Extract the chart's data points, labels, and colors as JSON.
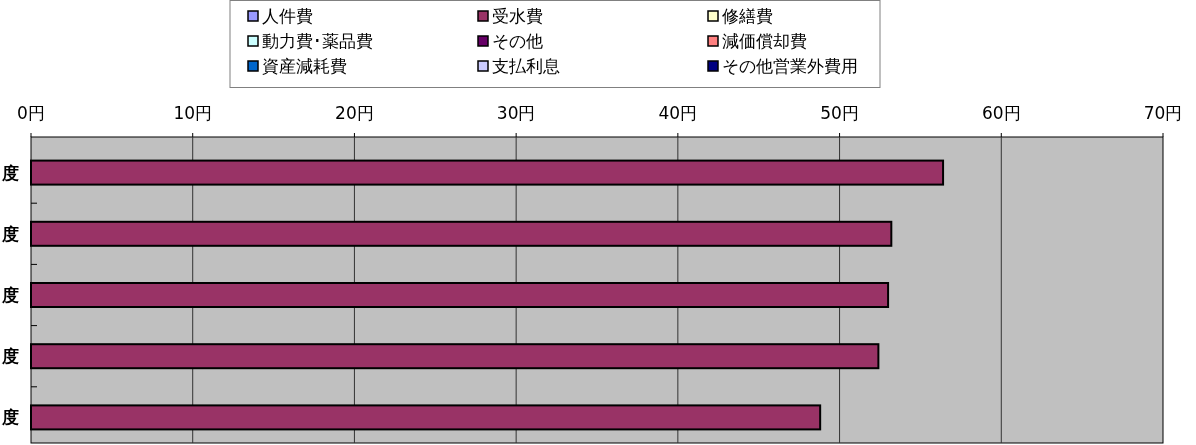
{
  "chart_data": {
    "type": "bar",
    "orientation": "horizontal",
    "stacked": true,
    "categories": [
      "度",
      "度",
      "度",
      "度",
      "度"
    ],
    "series": [
      {
        "name": "人件費",
        "color": "#9999ff",
        "values": [
          0,
          0,
          0,
          0,
          0
        ]
      },
      {
        "name": "受水費",
        "color": "#993366",
        "values": [
          56.4,
          53.2,
          53.0,
          52.4,
          48.8
        ]
      },
      {
        "name": "修繕費",
        "color": "#ffffcc",
        "values": [
          0,
          0,
          0,
          0,
          0
        ]
      },
      {
        "name": "動力費･薬品費",
        "color": "#ccffff",
        "values": [
          0,
          0,
          0,
          0,
          0
        ]
      },
      {
        "name": "その他",
        "color": "#660066",
        "values": [
          0,
          0,
          0,
          0,
          0
        ]
      },
      {
        "name": "減価償却費",
        "color": "#ff8080",
        "values": [
          0,
          0,
          0,
          0,
          0
        ]
      },
      {
        "name": "資産減耗費",
        "color": "#0066cc",
        "values": [
          0,
          0,
          0,
          0,
          0
        ]
      },
      {
        "name": "支払利息",
        "color": "#ccccff",
        "values": [
          0,
          0,
          0,
          0,
          0
        ]
      },
      {
        "name": "その他営業外費用",
        "color": "#000080",
        "values": [
          0,
          0,
          0,
          0,
          0
        ]
      }
    ],
    "xlim": [
      0,
      70
    ],
    "xticks": [
      {
        "value": 0,
        "label": "0円"
      },
      {
        "value": 10,
        "label": "10円"
      },
      {
        "value": 20,
        "label": "20円"
      },
      {
        "value": 30,
        "label": "30円"
      },
      {
        "value": 40,
        "label": "40円"
      },
      {
        "value": 50,
        "label": "50円"
      },
      {
        "value": 60,
        "label": "60円"
      },
      {
        "value": 70,
        "label": "70円"
      }
    ],
    "grid": "x",
    "legend": "top"
  }
}
